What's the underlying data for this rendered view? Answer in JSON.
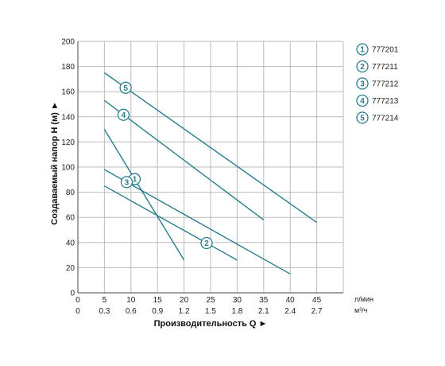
{
  "chart_data": {
    "type": "line",
    "ylabel": "Создаваемый напор H (м) ►",
    "xlabel": "Производительность Q ►",
    "x_unit_primary": "л/мин",
    "x_unit_secondary": "м³/ч",
    "xlim": [
      0,
      50
    ],
    "ylim": [
      0,
      200
    ],
    "x_ticks": [
      "0",
      "5",
      "10",
      "15",
      "20",
      "25",
      "30",
      "35",
      "40",
      "45"
    ],
    "x2_ticks": [
      "0",
      "0.3",
      "0.6",
      "0.9",
      "1.2",
      "1.5",
      "1.8",
      "2.1",
      "2.4",
      "2.7"
    ],
    "y_ticks": [
      "0",
      "20",
      "40",
      "60",
      "80",
      "100",
      "120",
      "140",
      "160",
      "180",
      "200"
    ],
    "grid": true,
    "legend_position": "right",
    "line_color": "#2a7d8c",
    "series": [
      {
        "marker": "1",
        "name": "777201",
        "x": [
          5,
          20
        ],
        "y": [
          130,
          26
        ]
      },
      {
        "marker": "2",
        "name": "777211",
        "x": [
          5,
          30
        ],
        "y": [
          85,
          26
        ]
      },
      {
        "marker": "3",
        "name": "777212",
        "x": [
          5,
          40
        ],
        "y": [
          98,
          15
        ]
      },
      {
        "marker": "4",
        "name": "777213",
        "x": [
          5,
          35
        ],
        "y": [
          153,
          58
        ]
      },
      {
        "marker": "5",
        "name": "777214",
        "x": [
          5,
          45
        ],
        "y": [
          175,
          56
        ]
      }
    ]
  }
}
